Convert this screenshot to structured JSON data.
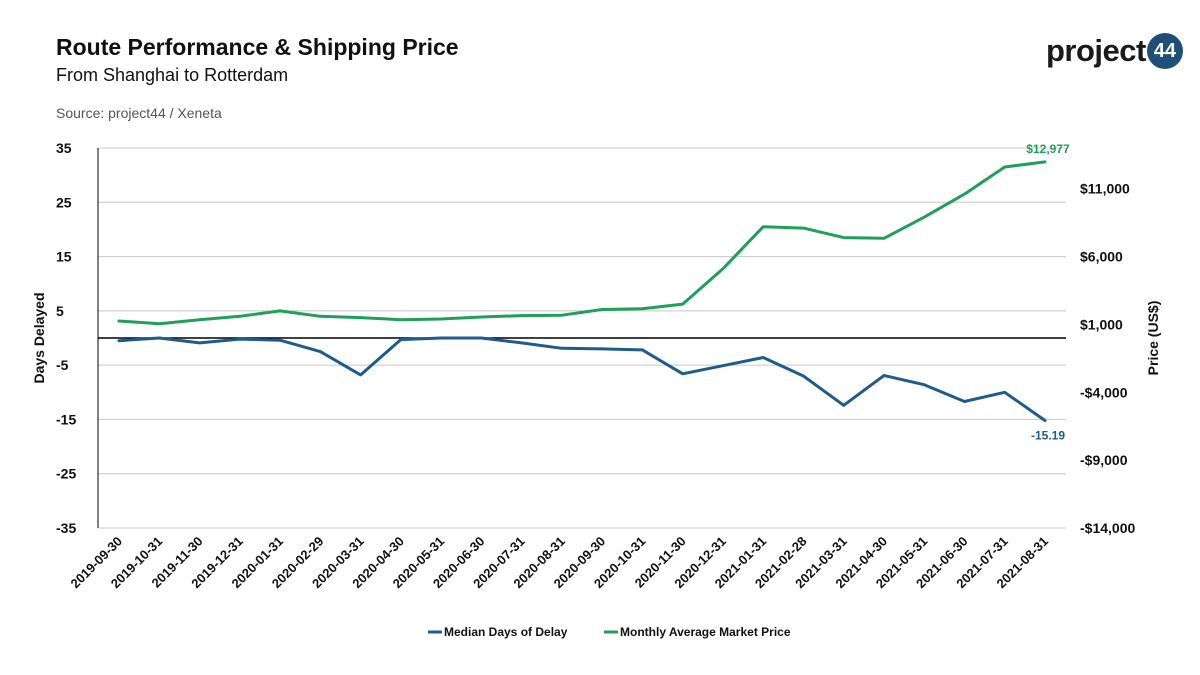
{
  "header": {
    "title": "Route Performance & Shipping Price",
    "subtitle": "From Shanghai to Rotterdam",
    "source": "Source: project44 / Xeneta"
  },
  "logo": {
    "text": "project",
    "badge": "44"
  },
  "colors": {
    "delay": "#1f5c8a",
    "price": "#1fa05a",
    "grid": "#c8c8c8",
    "zero": "#000000"
  },
  "chart_data": {
    "type": "line",
    "title": "Route Performance & Shipping Price",
    "subtitle": "From Shanghai to Rotterdam",
    "x": [
      "2019-09-30",
      "2019-10-31",
      "2019-11-30",
      "2019-12-31",
      "2020-01-31",
      "2020-02-29",
      "2020-03-31",
      "2020-04-30",
      "2020-05-31",
      "2020-06-30",
      "2020-07-31",
      "2020-08-31",
      "2020-09-30",
      "2020-10-31",
      "2020-11-30",
      "2020-12-31",
      "2021-01-31",
      "2021-02-28",
      "2021-03-31",
      "2021-04-30",
      "2021-05-31",
      "2021-06-30",
      "2021-07-31",
      "2021-08-31"
    ],
    "y_left": {
      "label": "Days Delayed",
      "range": [
        -35,
        35
      ],
      "ticks": [
        35,
        25,
        15,
        5,
        -5,
        -15,
        -25,
        -35
      ]
    },
    "y_right": {
      "label": "Price (US$)",
      "range": [
        -14000,
        14000
      ],
      "ticks": [
        11000,
        6000,
        1000,
        -4000,
        -9000,
        -14000
      ],
      "tick_labels": [
        "$11,000",
        "$6,000",
        "$1,000",
        "-$4,000",
        "-$9,000",
        "-$14,000"
      ]
    },
    "grid": true,
    "legend_position": "bottom",
    "series": [
      {
        "name": "Median Days of Delay",
        "axis": "left",
        "values": [
          -0.5,
          0,
          -0.9,
          -0.2,
          -0.4,
          -2.5,
          -6.8,
          -0.3,
          0,
          0,
          -0.9,
          -1.9,
          -2.0,
          -2.2,
          -6.6,
          -5.1,
          -3.6,
          -7.0,
          -12.4,
          -6.9,
          -8.6,
          -11.7,
          -10.0,
          -15.19
        ],
        "end_label": "-15.19"
      },
      {
        "name": "Monthly Average Market Price",
        "axis": "right",
        "values": [
          1250,
          1050,
          1350,
          1600,
          2000,
          1600,
          1500,
          1350,
          1400,
          1550,
          1650,
          1680,
          2100,
          2150,
          2500,
          5100,
          8200,
          8100,
          7400,
          7350,
          8900,
          10600,
          12600,
          12977
        ],
        "end_label": "$12,977"
      }
    ]
  }
}
